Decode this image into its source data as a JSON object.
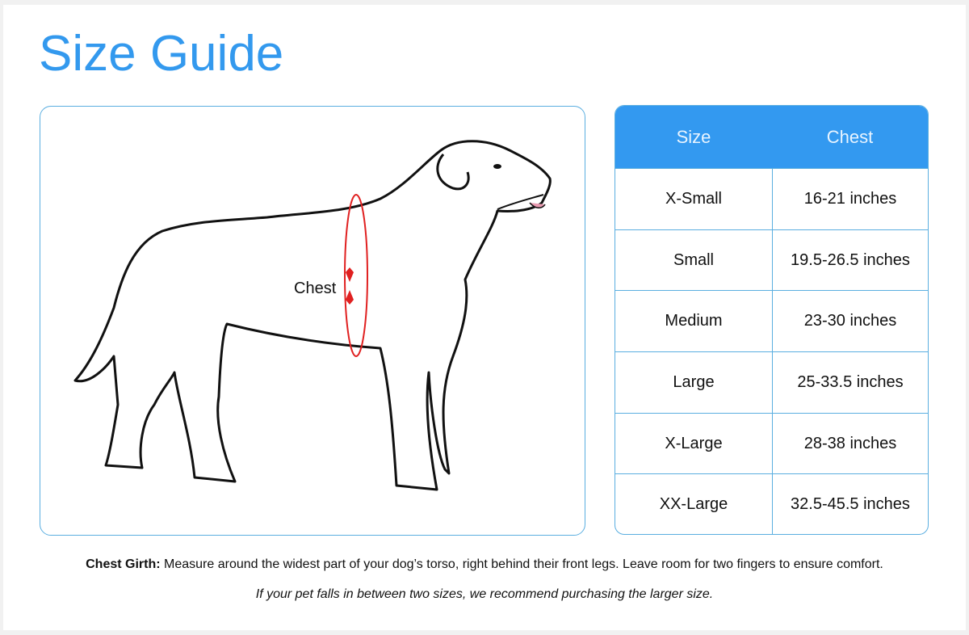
{
  "title": "Size Guide",
  "illustration": {
    "label": "Chest",
    "accent": "#e02020"
  },
  "table": {
    "headers": [
      "Size",
      "Chest"
    ],
    "rows": [
      [
        "X-Small",
        "16-21 inches"
      ],
      [
        "Small",
        "19.5-26.5 inches"
      ],
      [
        "Medium",
        "23-30 inches"
      ],
      [
        "Large",
        "25-33.5 inches"
      ],
      [
        "X-Large",
        "28-38 inches"
      ],
      [
        "XX-Large",
        "32.5-45.5 inches"
      ]
    ],
    "header_color": "#3399f0"
  },
  "note": {
    "label": "Chest Girth:",
    "text": " Measure around the widest part of your dog’s torso, right behind their front legs. Leave room for two fingers to ensure comfort."
  },
  "tip": "If your pet falls in between two sizes, we recommend purchasing the larger size."
}
